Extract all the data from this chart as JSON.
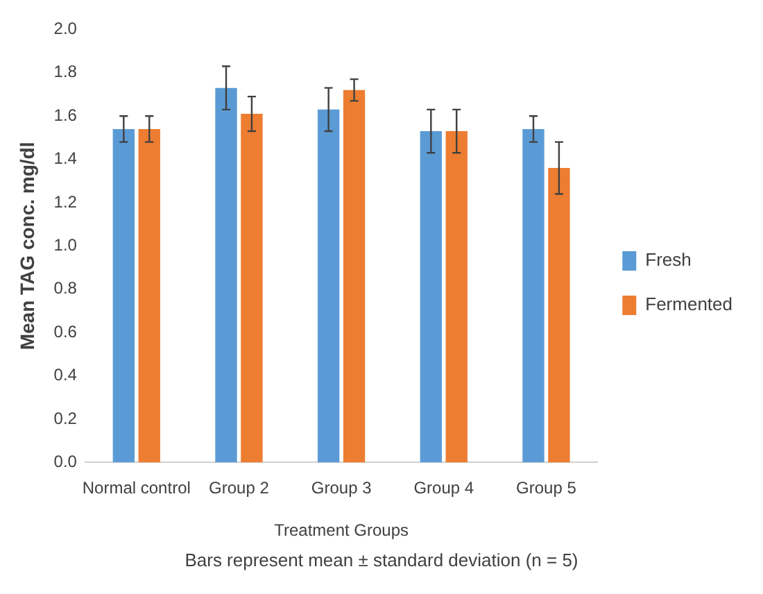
{
  "chart_data": {
    "type": "bar",
    "xlabel": "Treatment Groups",
    "ylabel": "Mean TAG conc. mg/dl",
    "categories": [
      "Normal control",
      "Group 2",
      "Group 3",
      "Group 4",
      "Group 5"
    ],
    "series": [
      {
        "name": "Fresh",
        "color": "#5b9bd5",
        "values": [
          1.54,
          1.73,
          1.63,
          1.53,
          1.54
        ],
        "errors": [
          0.06,
          0.1,
          0.1,
          0.1,
          0.06
        ]
      },
      {
        "name": "Fermented",
        "color": "#ed7d31",
        "values": [
          1.54,
          1.61,
          1.72,
          1.53,
          1.36
        ],
        "errors": [
          0.06,
          0.08,
          0.05,
          0.1,
          0.12
        ]
      }
    ],
    "ylim": [
      0,
      2
    ],
    "yticks": [
      {
        "value": 0,
        "label": "0.0"
      },
      {
        "value": 0.2,
        "label": "0.2"
      },
      {
        "value": 0.4,
        "label": "0.4"
      },
      {
        "value": 0.6,
        "label": "0.6"
      },
      {
        "value": 0.8,
        "label": "0.8"
      },
      {
        "value": 1,
        "label": "1.0"
      },
      {
        "value": 1.2,
        "label": "1.2"
      },
      {
        "value": 1.4,
        "label": "1.4"
      },
      {
        "value": 1.6,
        "label": "1.6"
      },
      {
        "value": 1.8,
        "label": "1.8"
      },
      {
        "value": 2,
        "label": "2.0"
      }
    ],
    "grid": false,
    "legend": "right",
    "annotations": [
      "Bars represent mean  ± standard deviation (n = 5)"
    ]
  }
}
